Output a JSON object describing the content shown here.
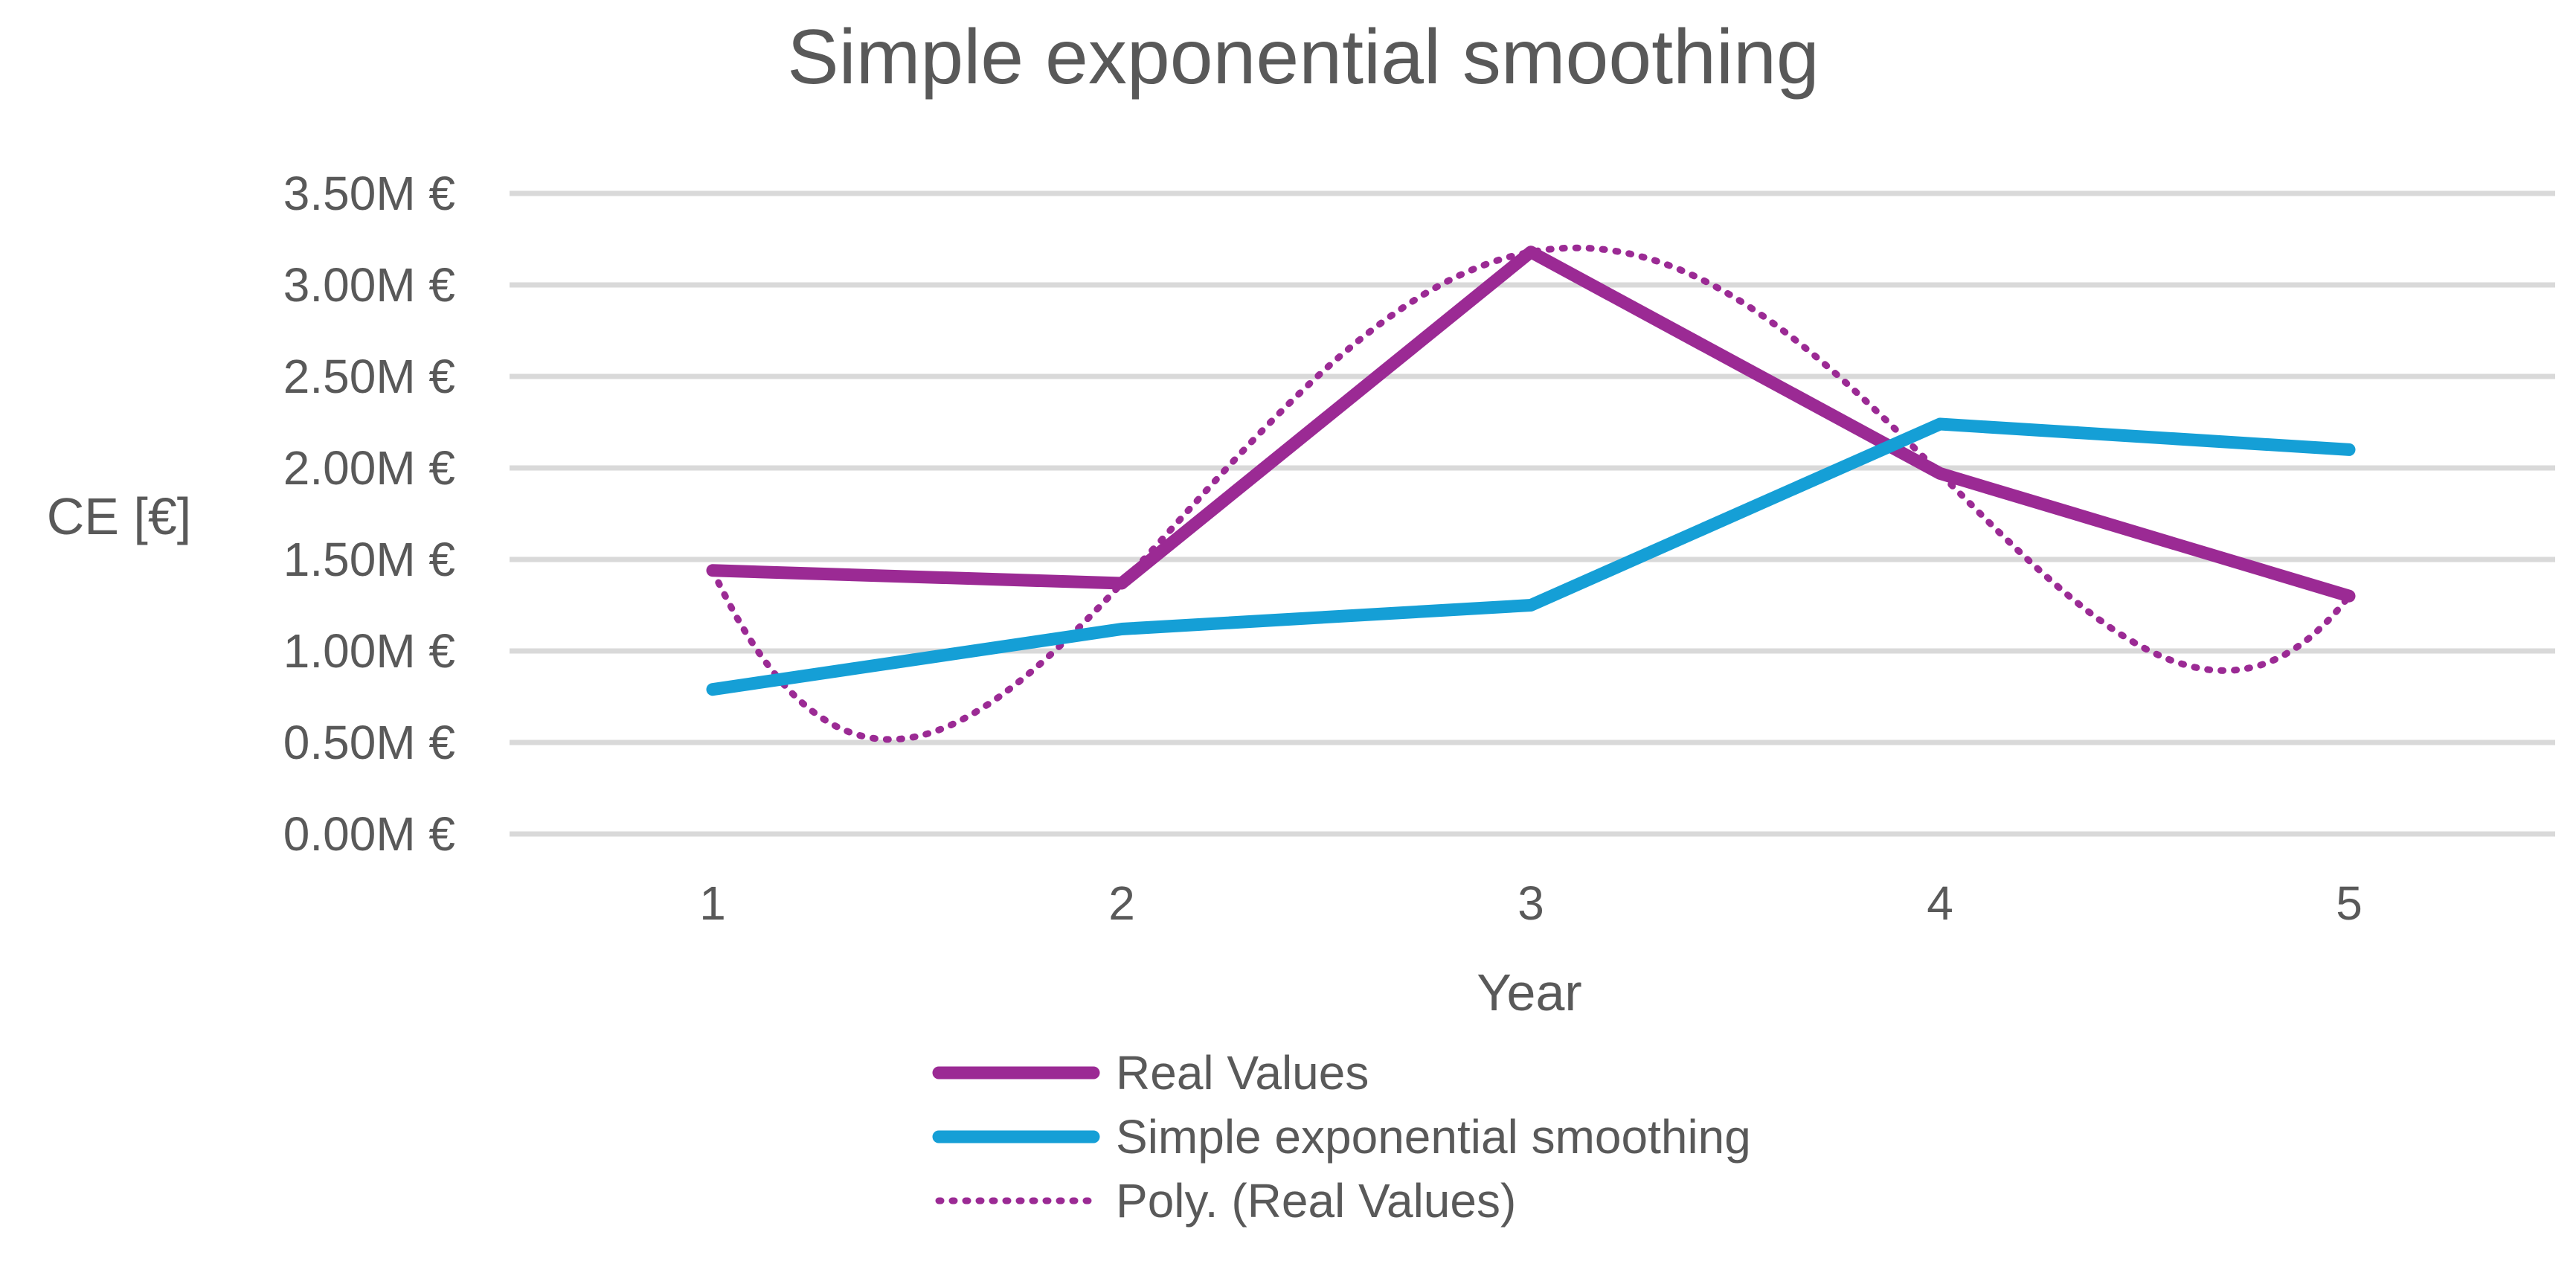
{
  "chart_data": {
    "type": "line",
    "title": "Simple exponential smoothing",
    "xlabel": "Year",
    "ylabel": "CE [€]",
    "categories": [
      "1",
      "2",
      "3",
      "4",
      "5"
    ],
    "ylim": [
      0,
      3.5
    ],
    "yticks": [
      0,
      0.5,
      1.0,
      1.5,
      2.0,
      2.5,
      3.0,
      3.5
    ],
    "ytick_labels": [
      "0.00M €",
      "0.50M €",
      "1.00M €",
      "1.50M €",
      "2.00M €",
      "2.50M €",
      "3.00M €",
      "3.50M €"
    ],
    "grid": true,
    "legend_position": "bottom",
    "series": [
      {
        "name": "Real Values",
        "values": [
          1.44,
          1.37,
          3.18,
          1.97,
          1.3
        ],
        "color": "#9b2a94",
        "style": "solid"
      },
      {
        "name": "Simple exponential smoothing",
        "values": [
          0.79,
          1.12,
          1.25,
          2.24,
          2.1
        ],
        "color": "#159fd6",
        "style": "solid"
      },
      {
        "name": "Poly. (Real Values)",
        "type": "polynomial-trendline",
        "of": "Real Values",
        "values": [
          1.44,
          1.37,
          3.18,
          1.97,
          1.3
        ],
        "color": "#9b2a94",
        "style": "dotted"
      }
    ]
  }
}
